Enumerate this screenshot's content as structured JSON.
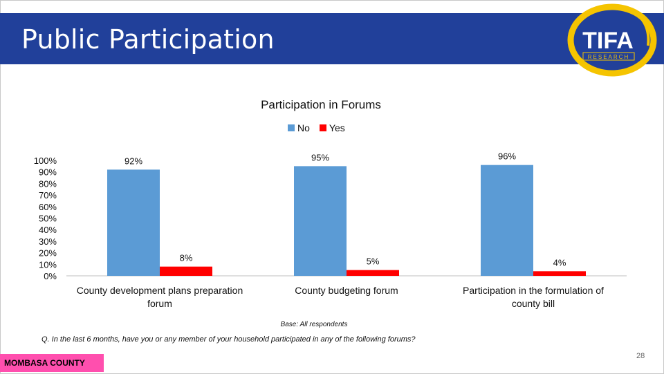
{
  "header": {
    "title": "Public Participation",
    "logo_text": "TIFA",
    "logo_subtext": "RESEARCH",
    "logo_colors": {
      "ring": "#f5c400",
      "text": "#ffffff",
      "bg": "#21409a"
    }
  },
  "chart_data": {
    "type": "bar",
    "title": "Participation in Forums",
    "categories": [
      "County development plans preparation forum",
      "County budgeting forum",
      "Participation in the formulation of county bill"
    ],
    "category_lines": [
      [
        "County development plans preparation",
        "forum"
      ],
      [
        "County budgeting forum"
      ],
      [
        "Participation in the formulation of",
        "county bill"
      ]
    ],
    "series": [
      {
        "name": "No",
        "values": [
          92,
          95,
          96
        ],
        "color": "#5b9bd5",
        "labels": [
          "92%",
          "95%",
          "96%"
        ]
      },
      {
        "name": "Yes",
        "values": [
          8,
          5,
          4
        ],
        "color": "#ff0000",
        "labels": [
          "8%",
          "5%",
          "4%"
        ]
      }
    ],
    "ylim": [
      0,
      100
    ],
    "yticks": [
      "0%",
      "10%",
      "20%",
      "30%",
      "40%",
      "50%",
      "60%",
      "70%",
      "80%",
      "90%",
      "100%"
    ],
    "xlabel": "",
    "ylabel": "",
    "grid": false,
    "legend": "top-center"
  },
  "notes": {
    "base": "Base: All respondents",
    "question": "Q. In the last 6 months, have you or any member of your household participated in any of the following forums?"
  },
  "footer": {
    "county": "MOMBASA COUNTY",
    "county_color": "#ff4fae",
    "page_number": "28"
  }
}
